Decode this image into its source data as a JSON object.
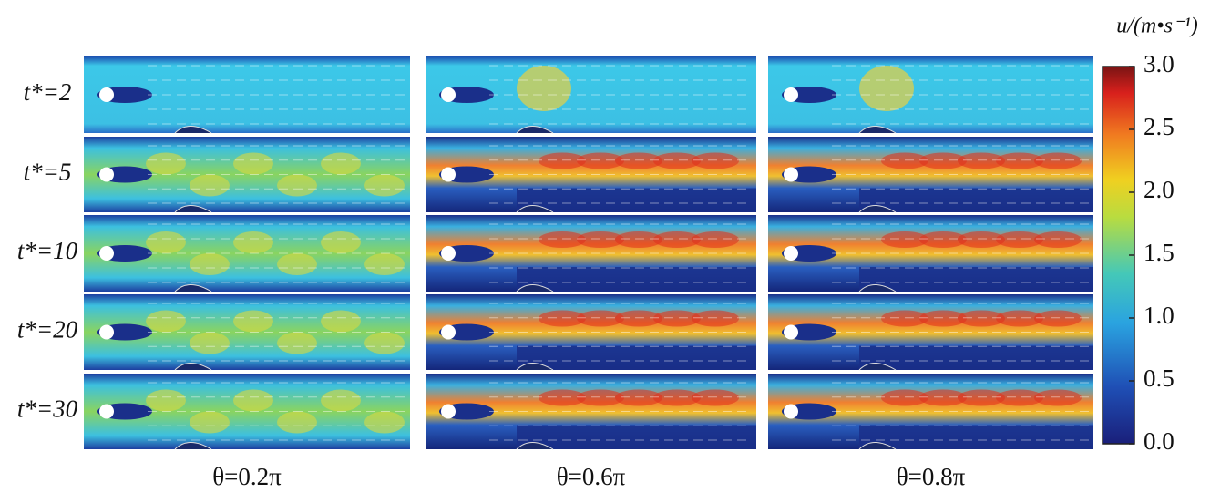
{
  "row_labels": [
    "t*=2",
    "t*=5",
    "t*=10",
    "t*=20",
    "t*=30"
  ],
  "column_labels": [
    "θ=0.2π",
    "θ=0.6π",
    "θ=0.8π"
  ],
  "colorbar": {
    "label": "u/(m•s⁻¹)",
    "lim": [
      0,
      3
    ],
    "ticks": [
      {
        "value": 0,
        "label": "0.0"
      },
      {
        "value": 0.5,
        "label": "0.5"
      },
      {
        "value": 1,
        "label": "1.0"
      },
      {
        "value": 1.5,
        "label": "1.5"
      },
      {
        "value": 2,
        "label": "2.0"
      },
      {
        "value": 2.5,
        "label": "2.5"
      },
      {
        "value": 3,
        "label": "3.0"
      }
    ]
  }
}
